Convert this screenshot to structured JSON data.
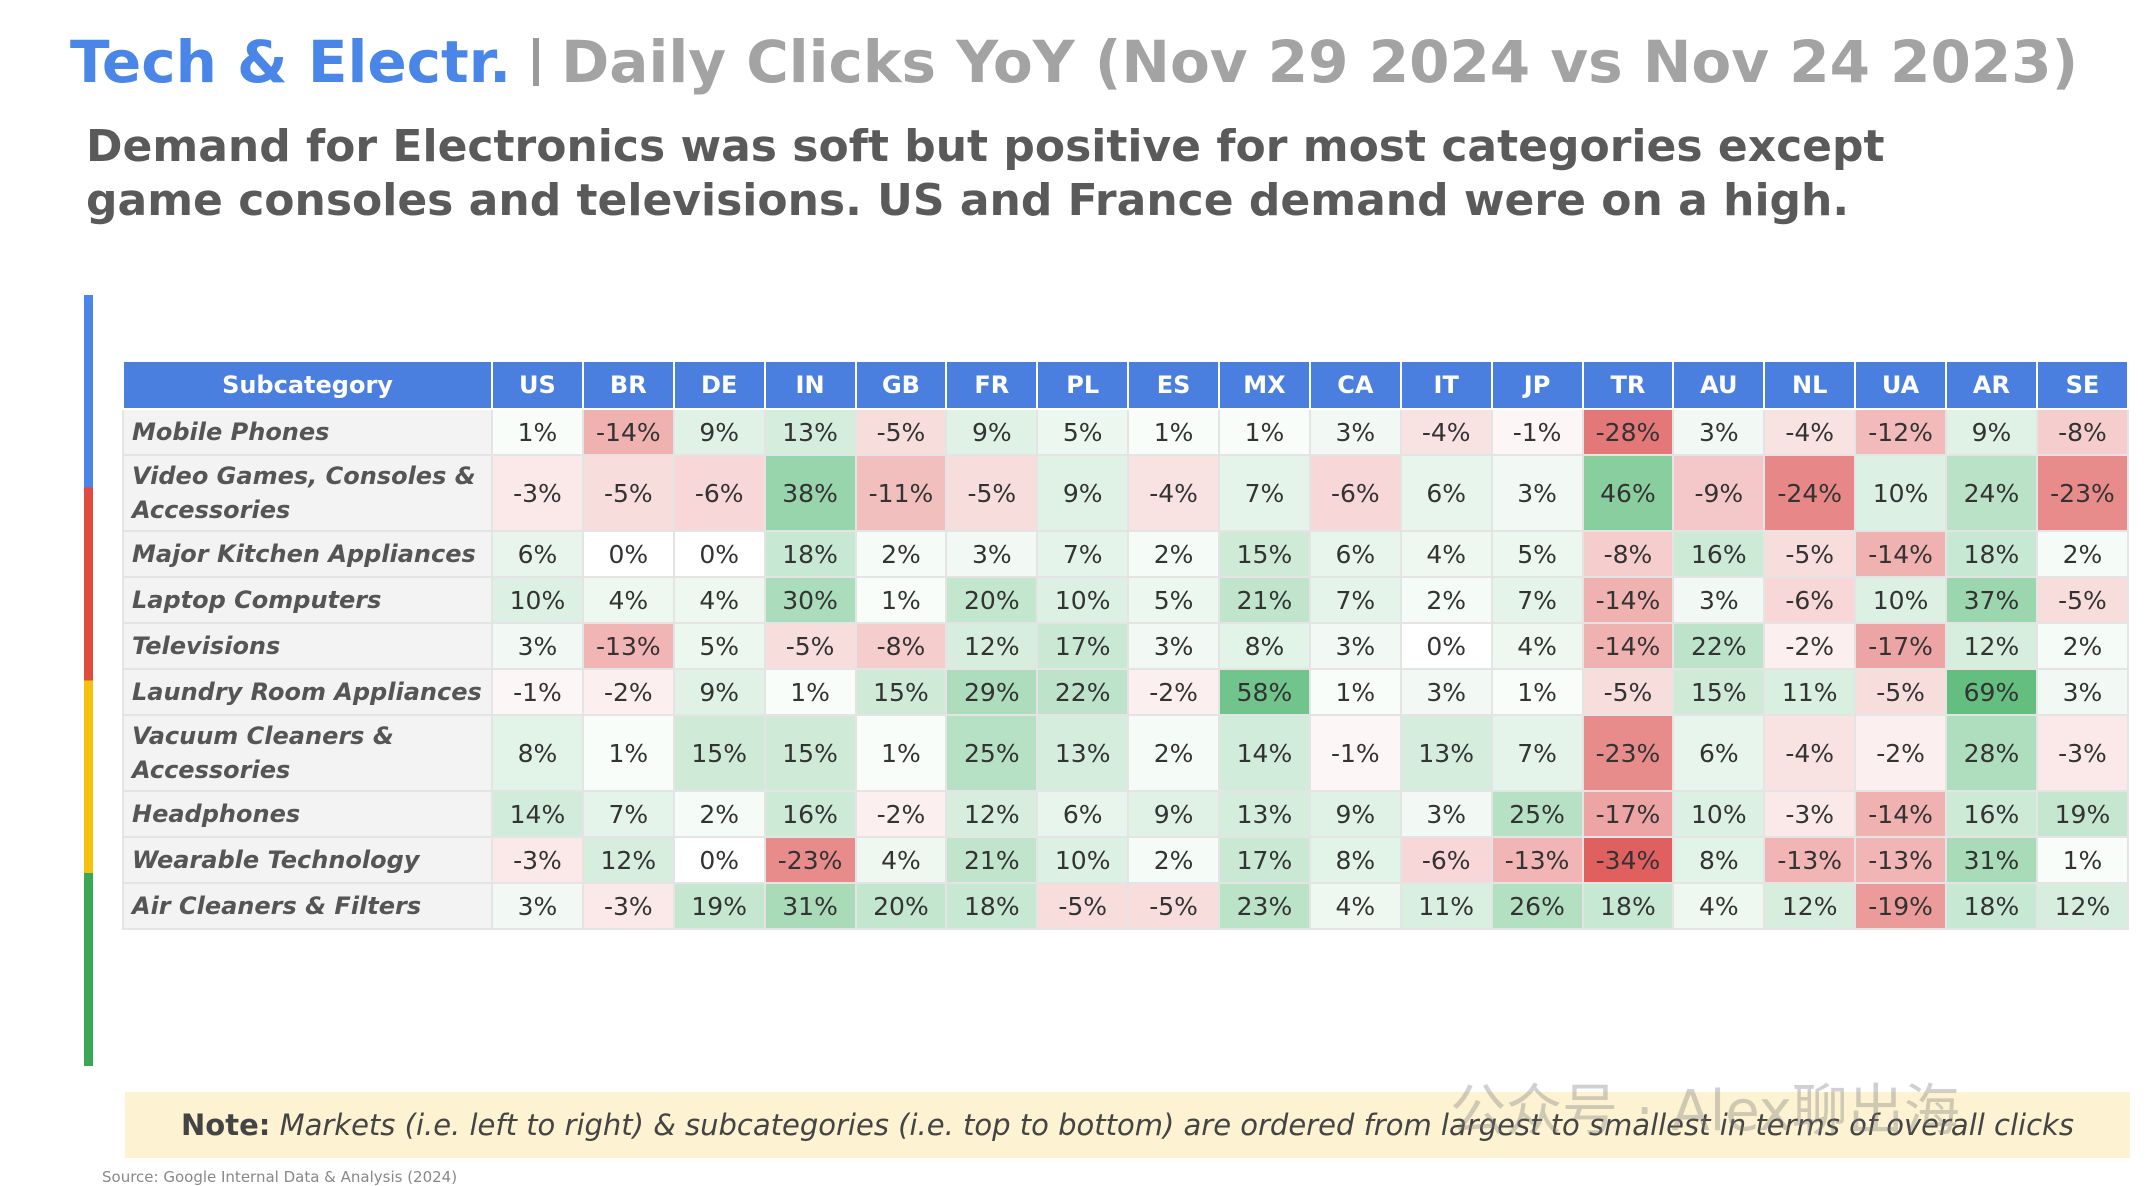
{
  "header": {
    "title_accent": "Tech & Electr.",
    "title": "Daily Clicks YoY (Nov 29 2024 vs Nov 24 2023)",
    "subtitle": "Demand for Electronics was soft but positive for most categories except game consoles and televisions. US and France demand were on a high."
  },
  "table": {
    "columns": [
      "Subcategory",
      "US",
      "BR",
      "DE",
      "IN",
      "GB",
      "FR",
      "PL",
      "ES",
      "MX",
      "CA",
      "IT",
      "JP",
      "TR",
      "AU",
      "NL",
      "UA",
      "AR",
      "SE"
    ],
    "rows": [
      {
        "label": "Mobile Phones",
        "values": [
          "1%",
          "-14%",
          "9%",
          "13%",
          "-5%",
          "9%",
          "5%",
          "1%",
          "1%",
          "3%",
          "-4%",
          "-1%",
          "-28%",
          "3%",
          "-4%",
          "-12%",
          "9%",
          "-8%"
        ]
      },
      {
        "label": "Video Games, Consoles & Accessories",
        "values": [
          "-3%",
          "-5%",
          "-6%",
          "38%",
          "-11%",
          "-5%",
          "9%",
          "-4%",
          "7%",
          "-6%",
          "6%",
          "3%",
          "46%",
          "-9%",
          "-24%",
          "10%",
          "24%",
          "-23%"
        ]
      },
      {
        "label": "Major Kitchen Appliances",
        "values": [
          "6%",
          "0%",
          "0%",
          "18%",
          "2%",
          "3%",
          "7%",
          "2%",
          "15%",
          "6%",
          "4%",
          "5%",
          "-8%",
          "16%",
          "-5%",
          "-14%",
          "18%",
          "2%"
        ]
      },
      {
        "label": "Laptop Computers",
        "values": [
          "10%",
          "4%",
          "4%",
          "30%",
          "1%",
          "20%",
          "10%",
          "5%",
          "21%",
          "7%",
          "2%",
          "7%",
          "-14%",
          "3%",
          "-6%",
          "10%",
          "37%",
          "-5%"
        ]
      },
      {
        "label": "Televisions",
        "values": [
          "3%",
          "-13%",
          "5%",
          "-5%",
          "-8%",
          "12%",
          "17%",
          "3%",
          "8%",
          "3%",
          "0%",
          "4%",
          "-14%",
          "22%",
          "-2%",
          "-17%",
          "12%",
          "2%"
        ]
      },
      {
        "label": "Laundry Room Appliances",
        "values": [
          "-1%",
          "-2%",
          "9%",
          "1%",
          "15%",
          "29%",
          "22%",
          "-2%",
          "58%",
          "1%",
          "3%",
          "1%",
          "-5%",
          "15%",
          "11%",
          "-5%",
          "69%",
          "3%"
        ]
      },
      {
        "label": "Vacuum Cleaners & Accessories",
        "values": [
          "8%",
          "1%",
          "15%",
          "15%",
          "1%",
          "25%",
          "13%",
          "2%",
          "14%",
          "-1%",
          "13%",
          "7%",
          "-23%",
          "6%",
          "-4%",
          "-2%",
          "28%",
          "-3%"
        ]
      },
      {
        "label": "Headphones",
        "values": [
          "14%",
          "7%",
          "2%",
          "16%",
          "-2%",
          "12%",
          "6%",
          "9%",
          "13%",
          "9%",
          "3%",
          "25%",
          "-17%",
          "10%",
          "-3%",
          "-14%",
          "16%",
          "19%"
        ]
      },
      {
        "label": "Wearable Technology",
        "values": [
          "-3%",
          "12%",
          "0%",
          "-23%",
          "4%",
          "21%",
          "10%",
          "2%",
          "17%",
          "8%",
          "-6%",
          "-13%",
          "-34%",
          "8%",
          "-13%",
          "-13%",
          "31%",
          "1%"
        ]
      },
      {
        "label": "Air Cleaners & Filters",
        "values": [
          "3%",
          "-3%",
          "19%",
          "31%",
          "20%",
          "18%",
          "-5%",
          "-5%",
          "23%",
          "4%",
          "11%",
          "26%",
          "18%",
          "4%",
          "12%",
          "-19%",
          "18%",
          "12%"
        ]
      }
    ]
  },
  "note": {
    "label": "Note:",
    "text": "Markets (i.e. left to right) & subcategories (i.e. top to bottom) are ordered from largest to smallest in terms of overall clicks"
  },
  "watermark": "公众号 · Alex聊出海",
  "source": "Source: Google Internal Data & Analysis (2024)"
}
